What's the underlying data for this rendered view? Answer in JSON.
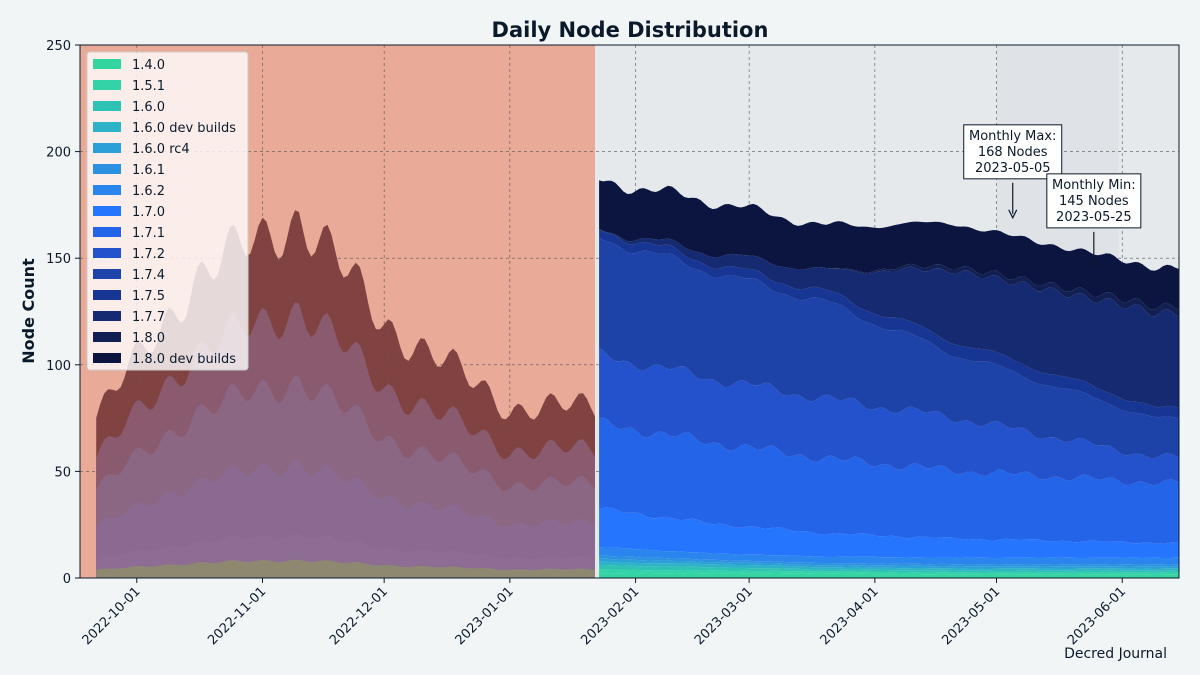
{
  "chart_data": {
    "type": "area",
    "stacked": true,
    "title": "Daily Node Distribution",
    "xlabel": "",
    "ylabel": "Node Count",
    "ylim": [
      0,
      250
    ],
    "yticks": [
      0,
      50,
      100,
      150,
      200,
      250
    ],
    "x_range": [
      "2022-09-17",
      "2023-06-15"
    ],
    "x_ticks": [
      "2022-10-01",
      "2022-11-01",
      "2022-12-01",
      "2023-01-01",
      "2023-02-01",
      "2023-03-01",
      "2023-04-01",
      "2023-05-01",
      "2023-06-01"
    ],
    "grid": true,
    "legend_position": "top-left",
    "highlight_region": {
      "start": "2022-09-13",
      "end": "2023-01-22",
      "color": "#e9ab98"
    },
    "shaded_region": {
      "start": "2023-05-01",
      "end": "2023-05-31",
      "color": "#dfe2e6"
    },
    "series": [
      {
        "name": "1.4.0",
        "color": "#33d4a0",
        "values": [
          2,
          2,
          2,
          1.5,
          1.5
        ]
      },
      {
        "name": "1.5.1",
        "color": "#31d3a7",
        "values": [
          2,
          1.5,
          1,
          1,
          1
        ]
      },
      {
        "name": "1.6.0",
        "color": "#2ec2b5",
        "values": [
          2,
          1.5,
          1,
          1,
          1
        ]
      },
      {
        "name": "1.6.0 dev builds",
        "color": "#2db2c8",
        "values": [
          1.5,
          1.5,
          1,
          1,
          1
        ]
      },
      {
        "name": "1.6.0 rc4",
        "color": "#2b9fd8",
        "values": [
          1.5,
          1,
          1,
          1,
          1
        ]
      },
      {
        "name": "1.6.1",
        "color": "#2d91e2",
        "values": [
          1.5,
          1,
          1,
          1,
          1
        ]
      },
      {
        "name": "1.6.2",
        "color": "#2b85ee",
        "values": [
          4,
          3,
          3,
          3,
          3
        ]
      },
      {
        "name": "1.7.0",
        "color": "#2675ff",
        "values": [
          18,
          14,
          11,
          9,
          7
        ]
      },
      {
        "name": "1.7.1",
        "color": "#2364e8",
        "values": [
          40,
          38,
          35,
          32,
          28
        ]
      },
      {
        "name": "1.7.2",
        "color": "#2352cc",
        "values": [
          32,
          30,
          28,
          25,
          12
        ]
      },
      {
        "name": "1.7.4",
        "color": "#1d42a8",
        "values": [
          55,
          50,
          45,
          30,
          18
        ]
      },
      {
        "name": "1.7.5",
        "color": "#173593",
        "values": [
          4,
          4,
          5,
          6,
          5
        ]
      },
      {
        "name": "1.7.7",
        "color": "#152a70",
        "values": [
          0,
          5,
          10,
          33,
          45
        ]
      },
      {
        "name": "1.8.0",
        "color": "#121f52",
        "values": [
          0,
          0,
          0,
          2,
          3
        ]
      },
      {
        "name": "1.8.0 dev builds",
        "color": "#0b1540",
        "values": [
          23,
          24,
          21,
          20,
          18
        ]
      }
    ],
    "series_dates": [
      "2023-01-23",
      "2023-02-20",
      "2023-03-20",
      "2023-04-20",
      "2023-06-10"
    ],
    "pre_period_totals": {
      "dates": [
        "2022-09-21",
        "2022-10-15",
        "2022-11-10",
        "2022-12-01",
        "2023-01-01",
        "2023-01-22"
      ],
      "values": [
        75,
        140,
        170,
        120,
        80,
        80
      ]
    },
    "annotations": [
      {
        "date": "2023-05-05",
        "value": 168,
        "lines": [
          "Monthly Max:",
          "168 Nodes",
          "2023-05-05"
        ]
      },
      {
        "date": "2023-05-25",
        "value": 145,
        "lines": [
          "Monthly Min:",
          "145 Nodes",
          "2023-05-25"
        ]
      }
    ],
    "watermark": "Decred Journal"
  }
}
